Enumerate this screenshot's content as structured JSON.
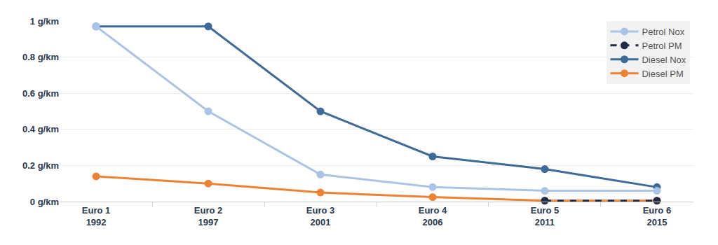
{
  "chart_data": {
    "type": "line",
    "categories": [
      "Euro 1\n1992",
      "Euro 2\n1997",
      "Euro 3\n2001",
      "Euro 4\n2006",
      "Euro 5\n2011",
      "Euro 6\n2015"
    ],
    "series": [
      {
        "name": "Petrol Nox",
        "color": "#a9c4e4",
        "marker": "circle",
        "line_style": "solid",
        "values": [
          0.97,
          0.5,
          0.15,
          0.08,
          0.06,
          0.06
        ]
      },
      {
        "name": "Petrol PM",
        "color": "#1f2a44",
        "marker": "circle",
        "line_style": "dash",
        "values": [
          null,
          null,
          null,
          null,
          0.005,
          0.005
        ]
      },
      {
        "name": "Diesel Nox",
        "color": "#3d6a96",
        "marker": "circle",
        "line_style": "solid",
        "values": [
          0.97,
          0.97,
          0.5,
          0.25,
          0.18,
          0.08
        ]
      },
      {
        "name": "Diesel PM",
        "color": "#ee8232",
        "marker": "circle",
        "line_style": "solid",
        "values": [
          0.14,
          0.1,
          0.05,
          0.025,
          0.005,
          0.005
        ]
      }
    ],
    "ylim": [
      0,
      1
    ],
    "yticks": [
      {
        "value": 0,
        "label": "0 g/km"
      },
      {
        "value": 0.2,
        "label": "0.2 g/km"
      },
      {
        "value": 0.4,
        "label": "0.4 g/km"
      },
      {
        "value": 0.6,
        "label": "0.6 g/km"
      },
      {
        "value": 0.8,
        "label": "0.8 g/km"
      },
      {
        "value": 1,
        "label": "1 g/km"
      }
    ],
    "grid": true,
    "legend": "top right"
  }
}
